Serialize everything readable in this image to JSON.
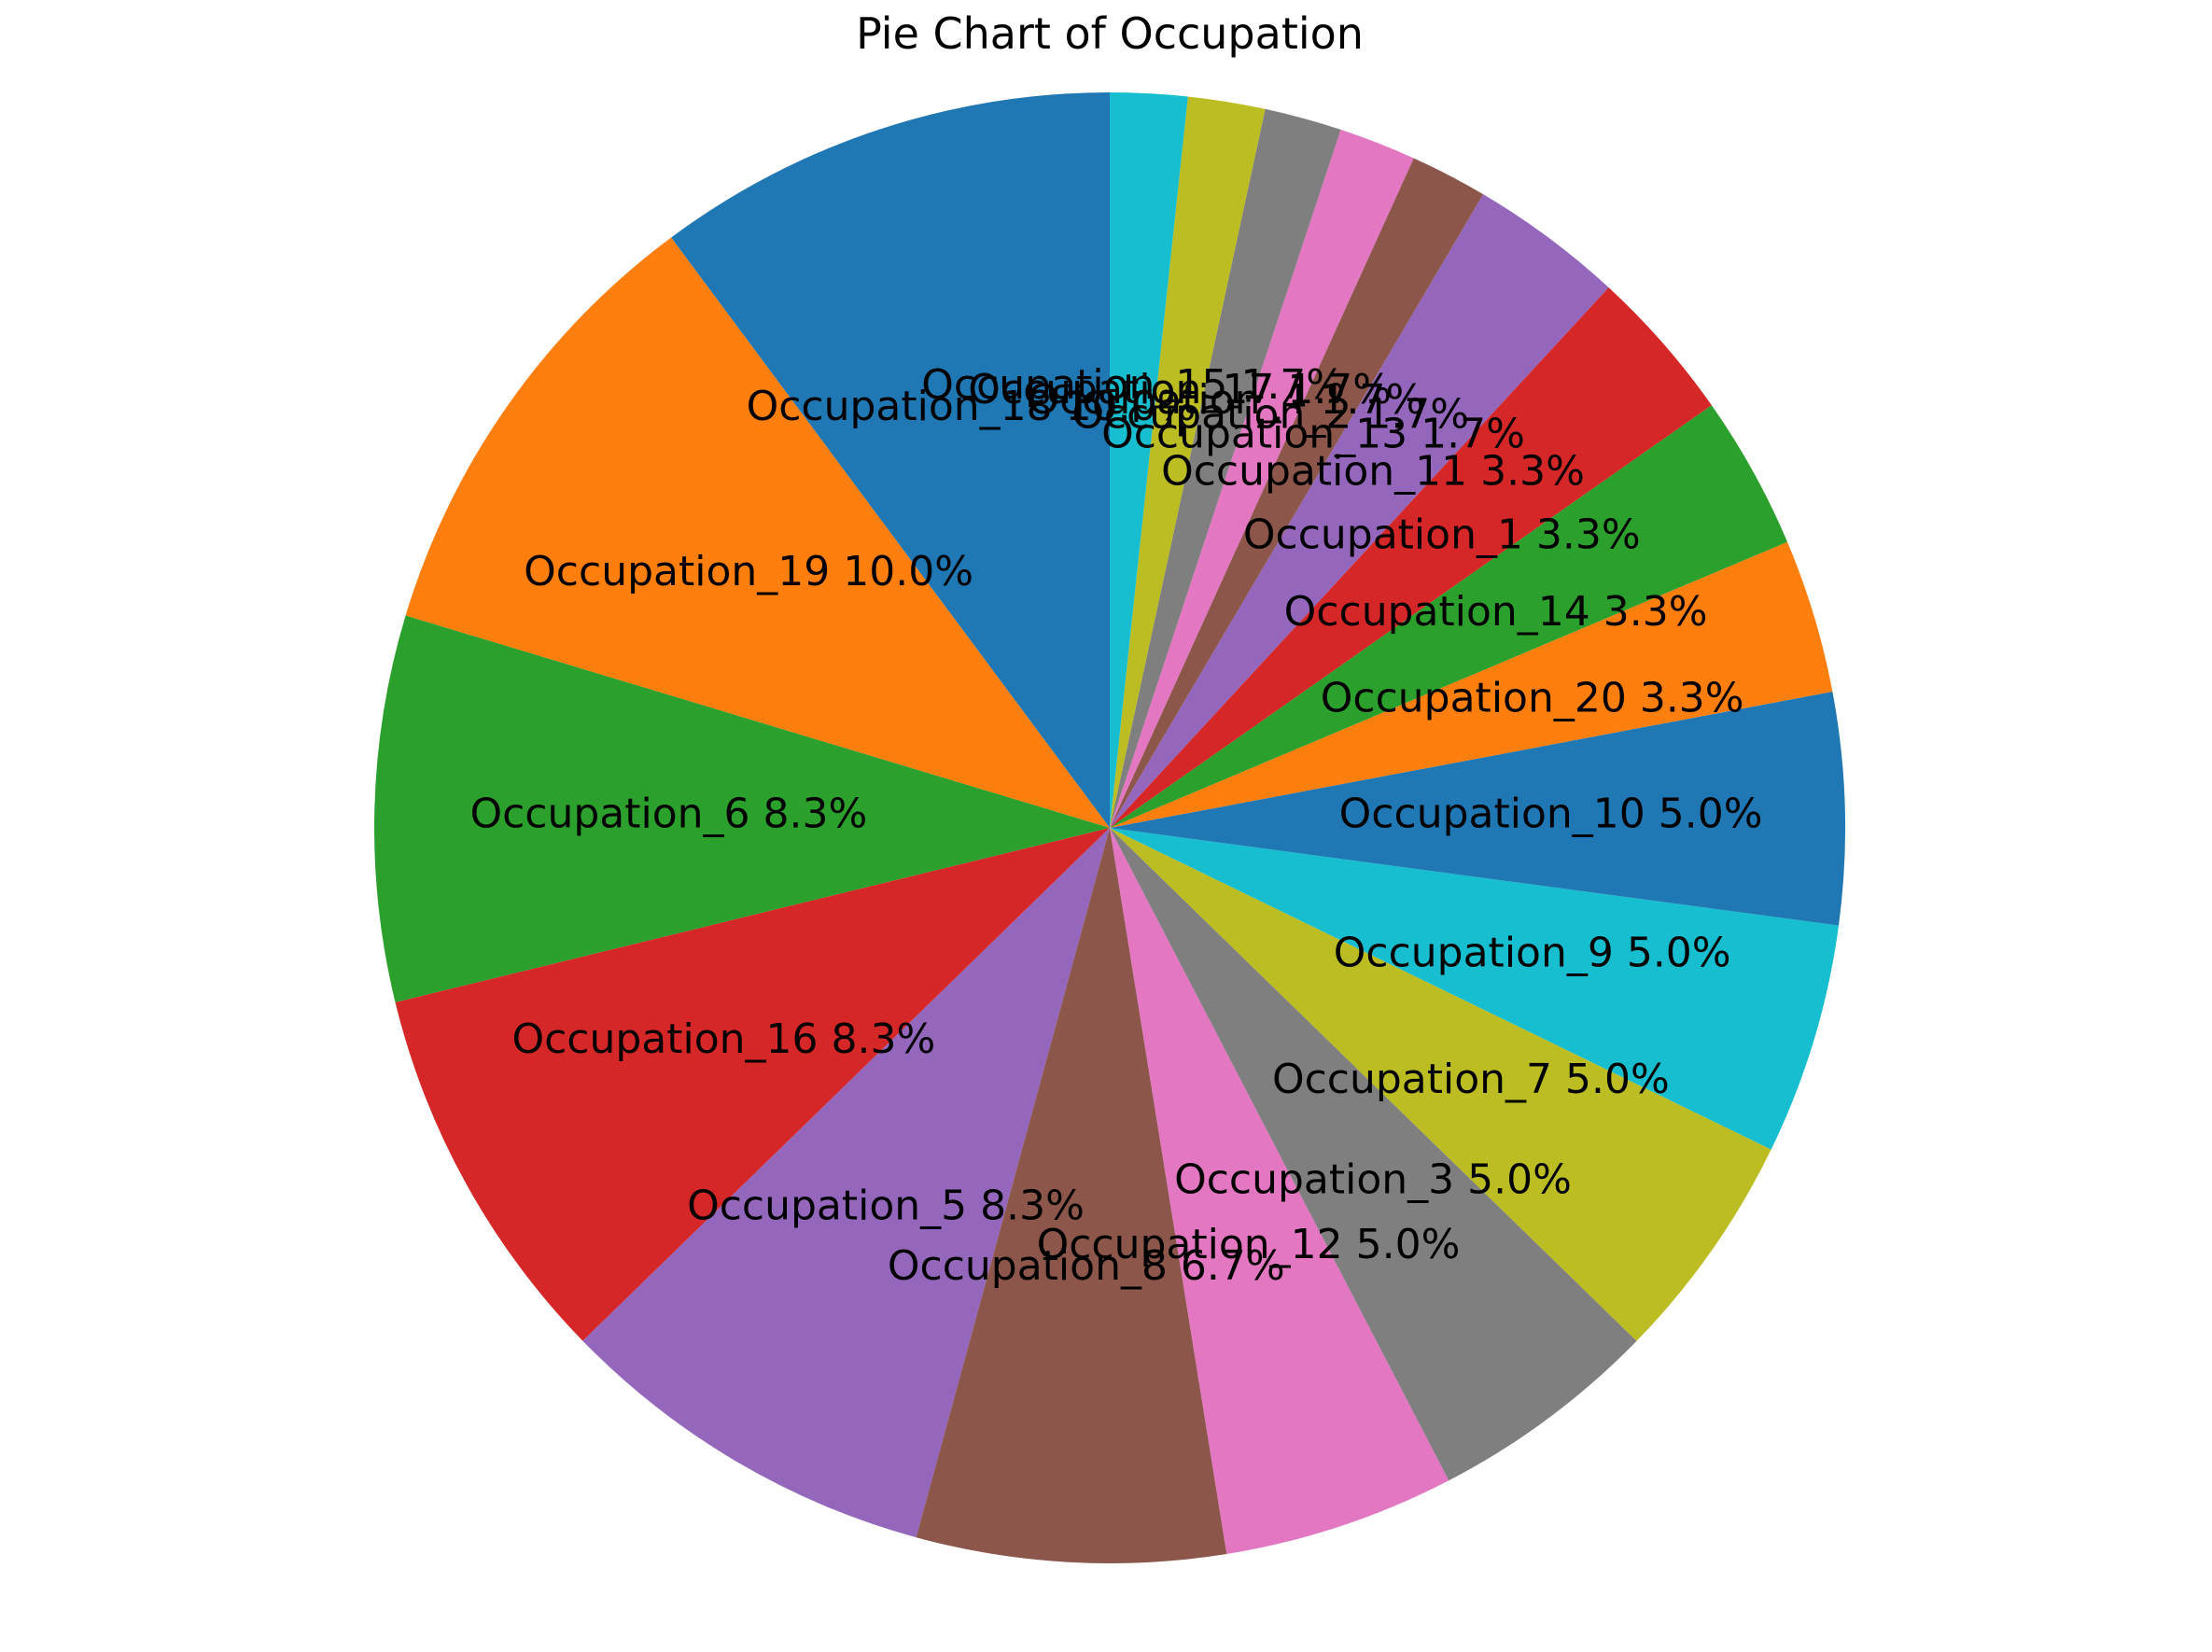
{
  "chart_data": {
    "type": "pie",
    "title": "Pie Chart of Occupation",
    "start_angle_deg": 90,
    "direction": "counterclockwise",
    "slices": [
      {
        "label": "Occupation_18",
        "percent_label": "10.0%",
        "value": 10.0,
        "color": "#1f77b4"
      },
      {
        "label": "Occupation_19",
        "percent_label": "10.0%",
        "value": 10.0,
        "color": "#ff7f0e"
      },
      {
        "label": "Occupation_6",
        "percent_label": "8.3%",
        "value": 8.333,
        "color": "#2ca02c"
      },
      {
        "label": "Occupation_16",
        "percent_label": "8.3%",
        "value": 8.333,
        "color": "#d62728"
      },
      {
        "label": "Occupation_5",
        "percent_label": "8.3%",
        "value": 8.333,
        "color": "#9467bd"
      },
      {
        "label": "Occupation_8",
        "percent_label": "6.7%",
        "value": 6.667,
        "color": "#8c564b"
      },
      {
        "label": "Occupation_12",
        "percent_label": "5.0%",
        "value": 5.0,
        "color": "#e377c2"
      },
      {
        "label": "Occupation_3",
        "percent_label": "5.0%",
        "value": 5.0,
        "color": "#7f7f7f"
      },
      {
        "label": "Occupation_7",
        "percent_label": "5.0%",
        "value": 5.0,
        "color": "#bcbd22"
      },
      {
        "label": "Occupation_9",
        "percent_label": "5.0%",
        "value": 5.0,
        "color": "#17becf"
      },
      {
        "label": "Occupation_10",
        "percent_label": "5.0%",
        "value": 5.0,
        "color": "#1f77b4"
      },
      {
        "label": "Occupation_20",
        "percent_label": "3.3%",
        "value": 3.333,
        "color": "#ff7f0e"
      },
      {
        "label": "Occupation_14",
        "percent_label": "3.3%",
        "value": 3.333,
        "color": "#2ca02c"
      },
      {
        "label": "Occupation_1",
        "percent_label": "3.3%",
        "value": 3.333,
        "color": "#d62728"
      },
      {
        "label": "Occupation_11",
        "percent_label": "3.3%",
        "value": 3.333,
        "color": "#9467bd"
      },
      {
        "label": "Occupation_13",
        "percent_label": "1.7%",
        "value": 1.667,
        "color": "#8c564b"
      },
      {
        "label": "Occupation_2",
        "percent_label": "1.7%",
        "value": 1.667,
        "color": "#e377c2"
      },
      {
        "label": "Occupation_4",
        "percent_label": "1.7%",
        "value": 1.667,
        "color": "#7f7f7f"
      },
      {
        "label": "Occupation_17",
        "percent_label": "1.7%",
        "value": 1.667,
        "color": "#bcbd22"
      },
      {
        "label": "Occupation_15",
        "percent_label": "1.7%",
        "value": 1.667,
        "color": "#17becf"
      }
    ]
  }
}
